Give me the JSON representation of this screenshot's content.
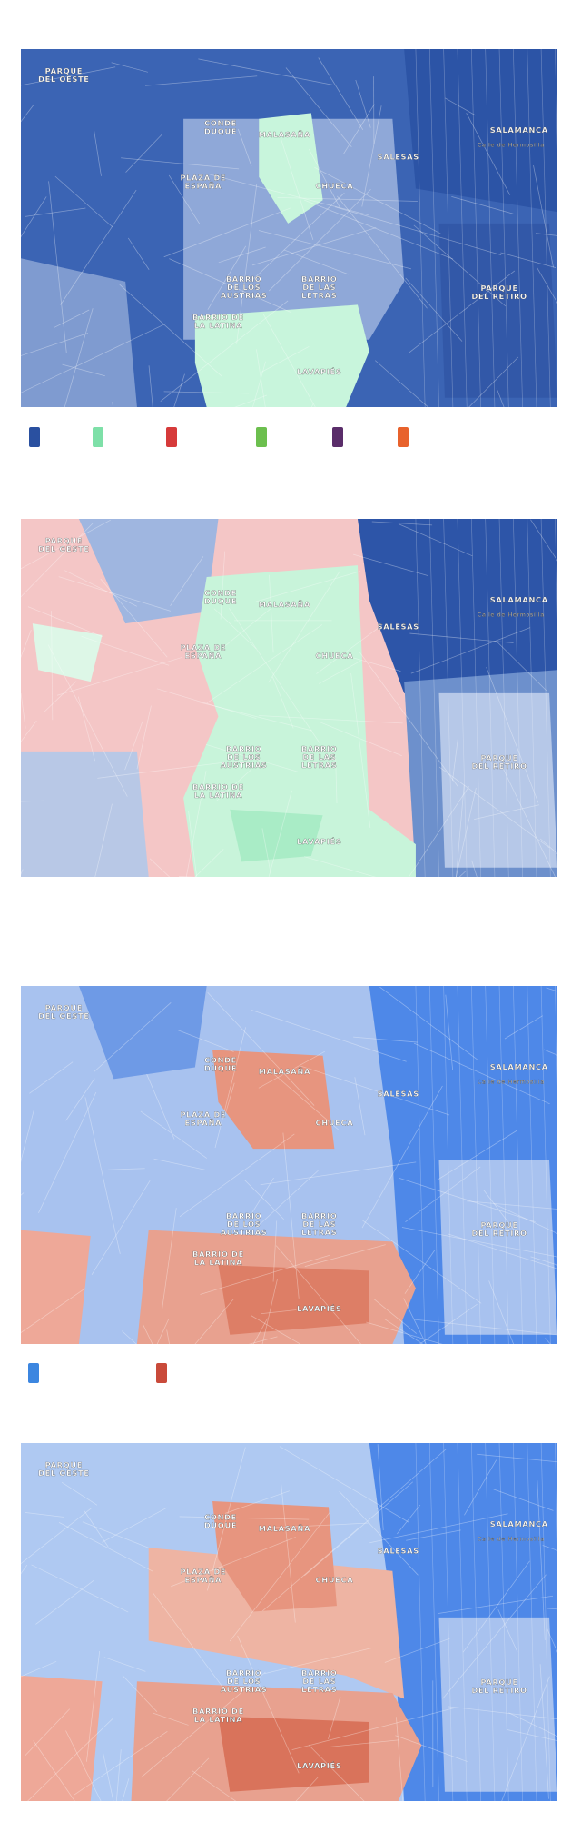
{
  "maps": [
    {
      "labels": [
        [
          "PARQUE",
          "DEL OESTE"
        ],
        [
          "CONDE",
          "DUQUE"
        ],
        [
          "MALASAÑA"
        ],
        [
          "PLAZA DE",
          "ESPAÑA"
        ],
        [
          "CHUECA"
        ],
        [
          "SALESAS"
        ],
        [
          "SALAMANCA"
        ],
        [
          "Calle de Hermosilla"
        ],
        [
          "BARRIO",
          "DE LOS",
          "AUSTRIAS"
        ],
        [
          "BARRIO",
          "DE LAS",
          "LETRAS"
        ],
        [
          "PARQUE",
          "DEL RETIRO"
        ],
        [
          "BARRIO DE",
          "LA LATINA"
        ],
        [
          "LAVAPIÉS"
        ]
      ],
      "legend_colors": [
        "#2a50a0",
        "#7ee0a8",
        "#d63a3a",
        "#6cbf4e",
        "#5a2d6a",
        "#e8622c"
      ]
    },
    {
      "labels": [
        [
          "PARQUE",
          "DEL OESTE"
        ],
        [
          "CONDE",
          "DUQUE"
        ],
        [
          "MALASAÑA"
        ],
        [
          "PLAZA DE",
          "ESPAÑA"
        ],
        [
          "CHUECA"
        ],
        [
          "SALESAS"
        ],
        [
          "SALAMANCA"
        ],
        [
          "Calle de Hermosilla"
        ],
        [
          "BARRIO",
          "DE LOS",
          "AUSTRIAS"
        ],
        [
          "BARRIO",
          "DE LAS",
          "LETRAS"
        ],
        [
          "PARQUE",
          "DEL RETIRO"
        ],
        [
          "BARRIO DE",
          "LA LATINA"
        ],
        [
          "LAVAPIÉS"
        ]
      ]
    },
    {
      "labels": [
        [
          "PARQUE",
          "DEL OESTE"
        ],
        [
          "CONDE",
          "DUQUE"
        ],
        [
          "MALASAÑA"
        ],
        [
          "PLAZA DE",
          "ESPAÑA"
        ],
        [
          "CHUECA"
        ],
        [
          "SALESAS"
        ],
        [
          "SALAMANCA"
        ],
        [
          "Calle de Hermosilla"
        ],
        [
          "BARRIO",
          "DE LOS",
          "AUSTRIAS"
        ],
        [
          "BARRIO",
          "DE LAS",
          "LETRAS"
        ],
        [
          "PARQUE",
          "DEL RETIRO"
        ],
        [
          "BARRIO DE",
          "LA LATINA"
        ],
        [
          "LAVAPIÉS"
        ]
      ],
      "legend_colors": [
        "#3c86e0",
        "#c94a3a"
      ]
    },
    {
      "labels": [
        [
          "PARQUE",
          "DEL OESTE"
        ],
        [
          "CONDE",
          "DUQUE"
        ],
        [
          "MALASAÑA"
        ],
        [
          "PLAZA DE",
          "ESPAÑA"
        ],
        [
          "CHUECA"
        ],
        [
          "SALESAS"
        ],
        [
          "SALAMANCA"
        ],
        [
          "Calle de Hermosilla"
        ],
        [
          "BARRIO",
          "DE LOS",
          "AUSTRIAS"
        ],
        [
          "BARRIO",
          "DE LAS",
          "LETRAS"
        ],
        [
          "PARQUE",
          "DEL RETIRO"
        ],
        [
          "BARRIO DE",
          "LA LATINA"
        ],
        [
          "LAVAPIÉS"
        ]
      ]
    }
  ]
}
